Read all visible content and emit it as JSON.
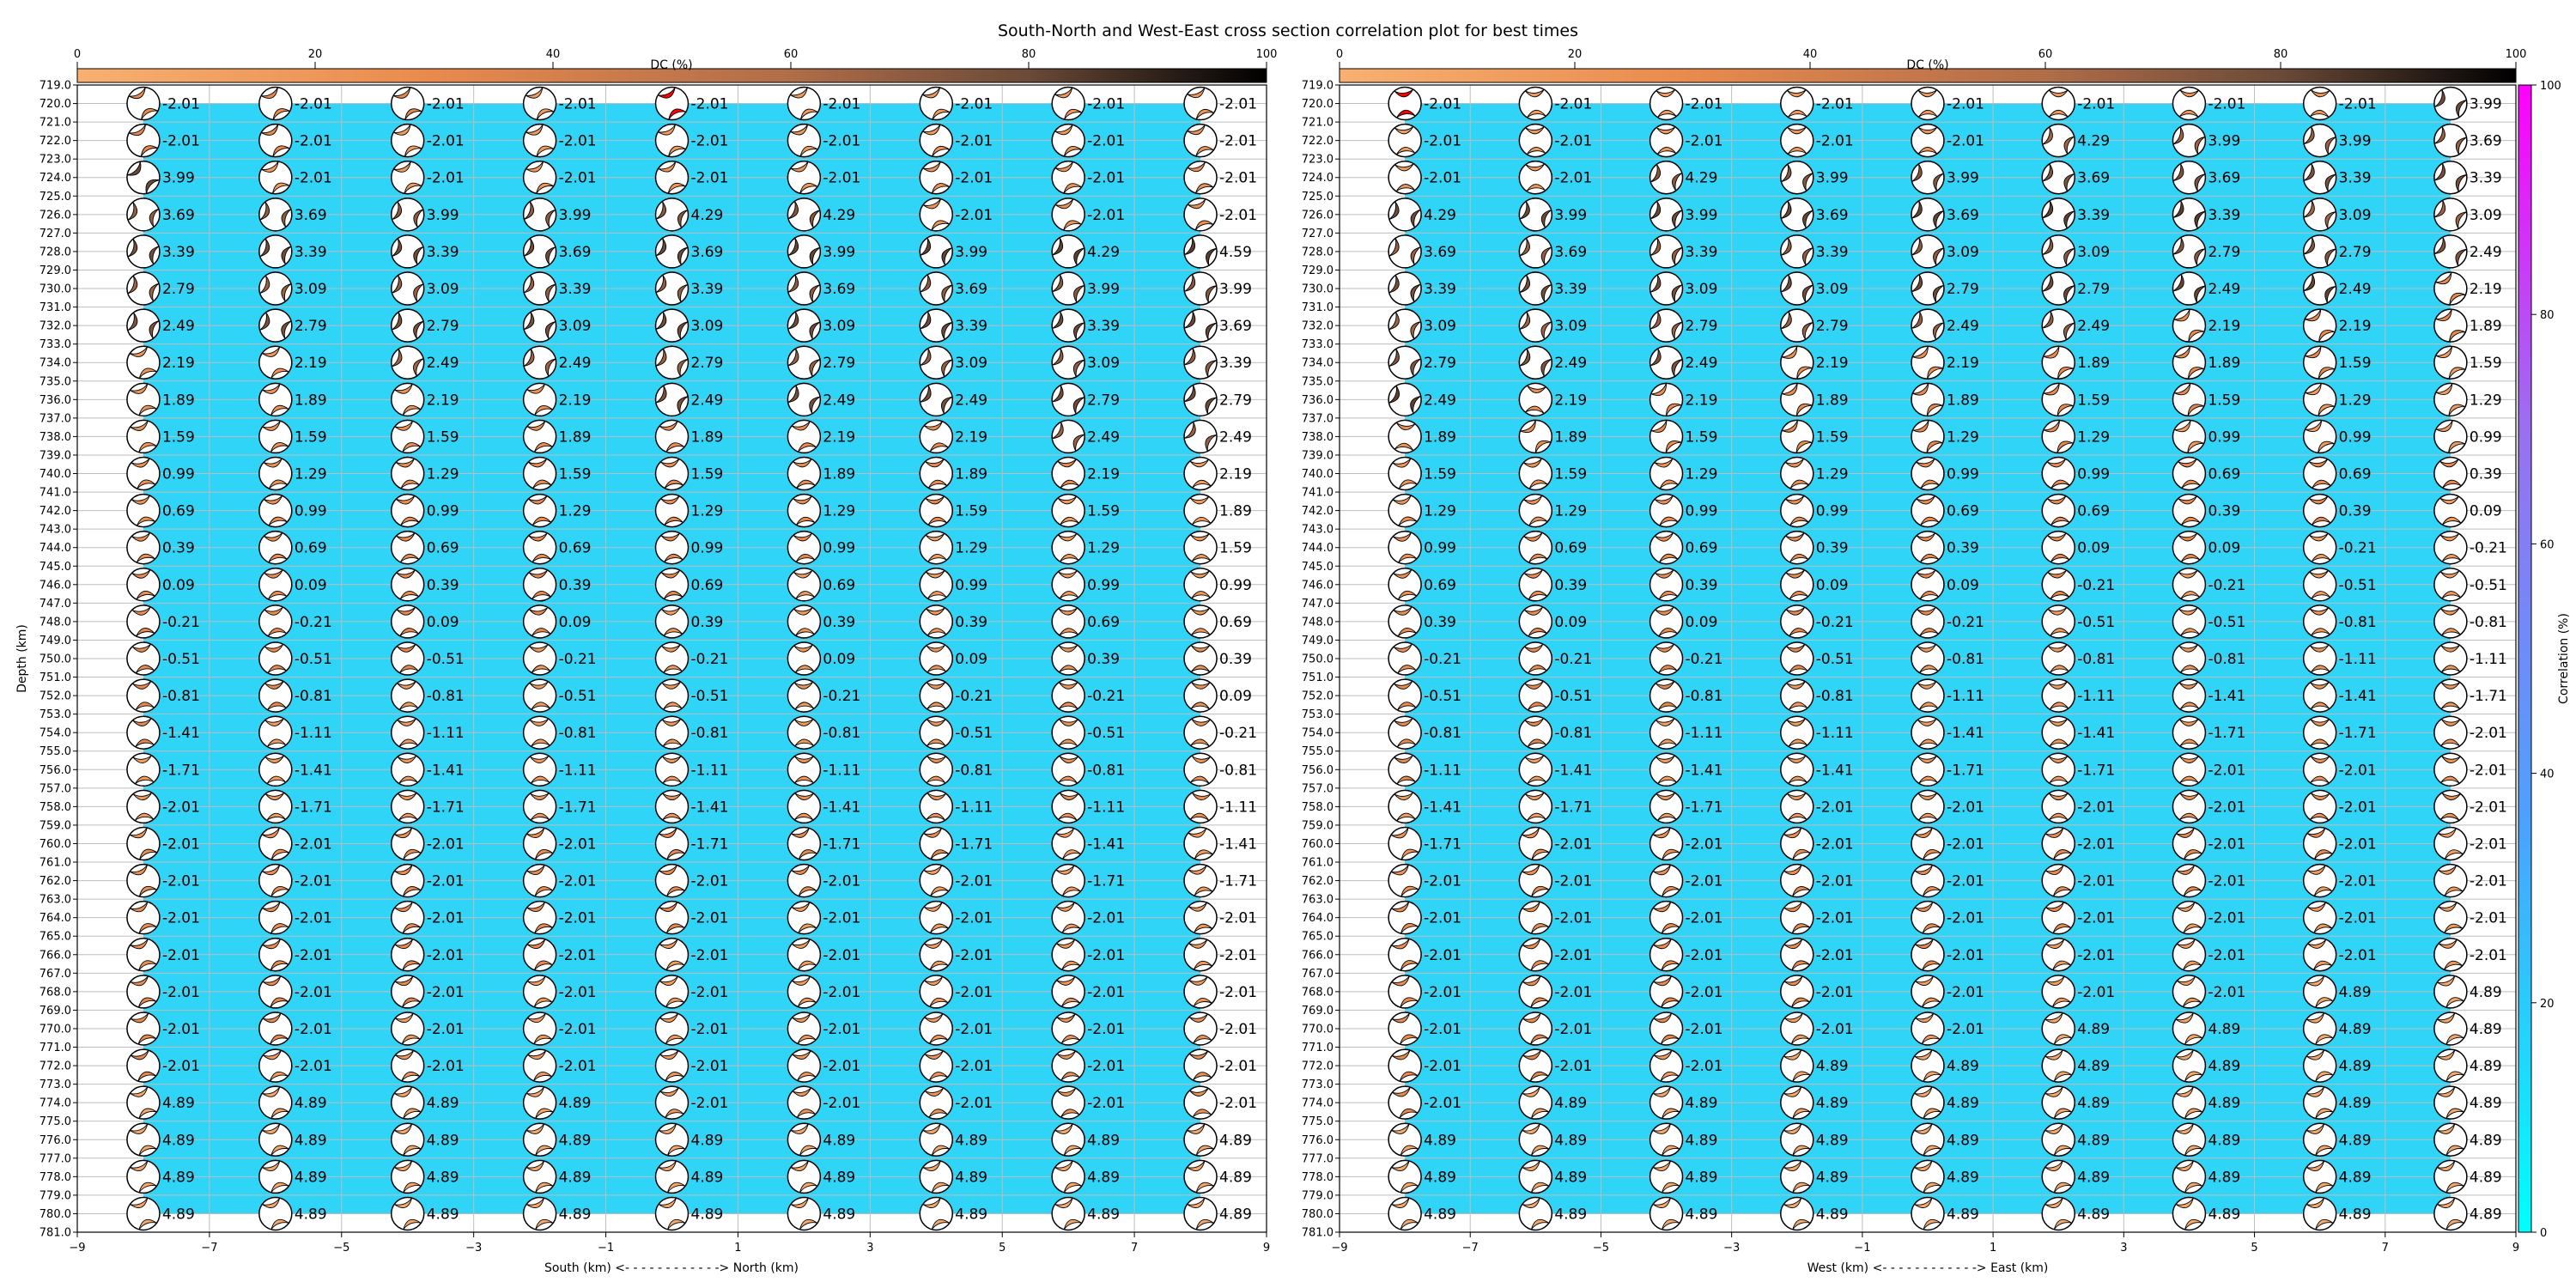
{
  "title": "South-North and West-East cross section correlation plot for best times",
  "colors": {
    "fill": "#2fd4f7",
    "beachball_outline": "#000000",
    "dc_gradient": [
      "#f8b070",
      "#e88a4e",
      "#b06d48",
      "#6a4a38",
      "#000000"
    ],
    "corr_gradient": [
      "#00ffff",
      "#4aa3ff",
      "#9a70f0",
      "#ff00ff"
    ],
    "highlight": "#ff0000",
    "grid": "#bdbdbd"
  },
  "dc_colorbar": {
    "label": "DC (%)",
    "ticks": [
      0,
      20,
      40,
      60,
      80,
      100
    ]
  },
  "corr_colorbar": {
    "label": "Correlation (%)",
    "ticks": [
      0,
      20,
      40,
      60,
      80,
      100
    ]
  },
  "chart_data": [
    {
      "type": "scatter",
      "xlabel": "South (km) <- - - - - - - - - - - -> North (km)",
      "ylabel": "Depth (km)",
      "xlim": [
        -9,
        9
      ],
      "ylim": [
        781,
        719
      ],
      "xticks": [
        -9,
        -7,
        -5,
        -3,
        -1,
        1,
        3,
        5,
        7,
        9
      ],
      "yticks": [
        719.0,
        720.0,
        721.0,
        722.0,
        723.0,
        724.0,
        725.0,
        726.0,
        727.0,
        728.0,
        729.0,
        730.0,
        731.0,
        732.0,
        733.0,
        734.0,
        735.0,
        736.0,
        737.0,
        738.0,
        739.0,
        740.0,
        741.0,
        742.0,
        743.0,
        744.0,
        745.0,
        746.0,
        747.0,
        748.0,
        749.0,
        750.0,
        751.0,
        752.0,
        753.0,
        754.0,
        755.0,
        756.0,
        757.0,
        758.0,
        759.0,
        760.0,
        761.0,
        762.0,
        763.0,
        764.0,
        765.0,
        766.0,
        767.0,
        768.0,
        769.0,
        770.0,
        771.0,
        772.0,
        773.0,
        774.0,
        775.0,
        776.0,
        777.0,
        778.0,
        779.0,
        780.0,
        781.0
      ],
      "x": [
        -8,
        -6,
        -4,
        -2,
        0,
        2,
        4,
        6,
        8
      ],
      "depths": [
        720,
        722,
        724,
        726,
        728,
        730,
        732,
        734,
        736,
        738,
        740,
        742,
        744,
        746,
        748,
        750,
        752,
        754,
        756,
        758,
        760,
        762,
        764,
        766,
        768,
        770,
        772,
        774,
        776,
        778,
        780
      ],
      "values": [
        [
          "-2.01",
          "-2.01",
          "-2.01",
          "-2.01",
          "-2.01",
          "-2.01",
          "-2.01",
          "-2.01",
          "-2.01"
        ],
        [
          "-2.01",
          "-2.01",
          "-2.01",
          "-2.01",
          "-2.01",
          "-2.01",
          "-2.01",
          "-2.01",
          "-2.01"
        ],
        [
          "3.99",
          "-2.01",
          "-2.01",
          "-2.01",
          "-2.01",
          "-2.01",
          "-2.01",
          "-2.01",
          "-2.01"
        ],
        [
          "3.69",
          "3.69",
          "3.99",
          "3.99",
          "4.29",
          "4.29",
          "-2.01",
          "-2.01",
          "-2.01"
        ],
        [
          "3.39",
          "3.39",
          "3.39",
          "3.69",
          "3.69",
          "3.99",
          "3.99",
          "4.29",
          "4.59"
        ],
        [
          "2.79",
          "3.09",
          "3.09",
          "3.39",
          "3.39",
          "3.69",
          "3.69",
          "3.99",
          "3.99"
        ],
        [
          "2.49",
          "2.79",
          "2.79",
          "3.09",
          "3.09",
          "3.09",
          "3.39",
          "3.39",
          "3.69"
        ],
        [
          "2.19",
          "2.19",
          "2.49",
          "2.49",
          "2.79",
          "2.79",
          "3.09",
          "3.09",
          "3.39"
        ],
        [
          "1.89",
          "1.89",
          "2.19",
          "2.19",
          "2.49",
          "2.49",
          "2.49",
          "2.79",
          "2.79"
        ],
        [
          "1.59",
          "1.59",
          "1.59",
          "1.89",
          "1.89",
          "2.19",
          "2.19",
          "2.49",
          "2.49"
        ],
        [
          "0.99",
          "1.29",
          "1.29",
          "1.59",
          "1.59",
          "1.89",
          "1.89",
          "2.19",
          "2.19"
        ],
        [
          "0.69",
          "0.99",
          "0.99",
          "1.29",
          "1.29",
          "1.29",
          "1.59",
          "1.59",
          "1.89"
        ],
        [
          "0.39",
          "0.69",
          "0.69",
          "0.69",
          "0.99",
          "0.99",
          "1.29",
          "1.29",
          "1.59"
        ],
        [
          "0.09",
          "0.09",
          "0.39",
          "0.39",
          "0.69",
          "0.69",
          "0.99",
          "0.99",
          "0.99"
        ],
        [
          "-0.21",
          "-0.21",
          "0.09",
          "0.09",
          "0.39",
          "0.39",
          "0.39",
          "0.69",
          "0.69"
        ],
        [
          "-0.51",
          "-0.51",
          "-0.51",
          "-0.21",
          "-0.21",
          "0.09",
          "0.09",
          "0.39",
          "0.39"
        ],
        [
          "-0.81",
          "-0.81",
          "-0.81",
          "-0.51",
          "-0.51",
          "-0.21",
          "-0.21",
          "-0.21",
          "0.09"
        ],
        [
          "-1.41",
          "-1.11",
          "-1.11",
          "-0.81",
          "-0.81",
          "-0.81",
          "-0.51",
          "-0.51",
          "-0.21"
        ],
        [
          "-1.71",
          "-1.41",
          "-1.41",
          "-1.11",
          "-1.11",
          "-1.11",
          "-0.81",
          "-0.81",
          "-0.81"
        ],
        [
          "-2.01",
          "-1.71",
          "-1.71",
          "-1.71",
          "-1.41",
          "-1.41",
          "-1.11",
          "-1.11",
          "-1.11"
        ],
        [
          "-2.01",
          "-2.01",
          "-2.01",
          "-2.01",
          "-1.71",
          "-1.71",
          "-1.71",
          "-1.41",
          "-1.41"
        ],
        [
          "-2.01",
          "-2.01",
          "-2.01",
          "-2.01",
          "-2.01",
          "-2.01",
          "-2.01",
          "-1.71",
          "-1.71"
        ],
        [
          "-2.01",
          "-2.01",
          "-2.01",
          "-2.01",
          "-2.01",
          "-2.01",
          "-2.01",
          "-2.01",
          "-2.01"
        ],
        [
          "-2.01",
          "-2.01",
          "-2.01",
          "-2.01",
          "-2.01",
          "-2.01",
          "-2.01",
          "-2.01",
          "-2.01"
        ],
        [
          "-2.01",
          "-2.01",
          "-2.01",
          "-2.01",
          "-2.01",
          "-2.01",
          "-2.01",
          "-2.01",
          "-2.01"
        ],
        [
          "-2.01",
          "-2.01",
          "-2.01",
          "-2.01",
          "-2.01",
          "-2.01",
          "-2.01",
          "-2.01",
          "-2.01"
        ],
        [
          "-2.01",
          "-2.01",
          "-2.01",
          "-2.01",
          "-2.01",
          "-2.01",
          "-2.01",
          "-2.01",
          "-2.01"
        ],
        [
          "4.89",
          "4.89",
          "4.89",
          "4.89",
          "-2.01",
          "-2.01",
          "-2.01",
          "-2.01",
          "-2.01"
        ],
        [
          "4.89",
          "4.89",
          "4.89",
          "4.89",
          "4.89",
          "4.89",
          "4.89",
          "4.89",
          "4.89"
        ],
        [
          "4.89",
          "4.89",
          "4.89",
          "4.89",
          "4.89",
          "4.89",
          "4.89",
          "4.89",
          "4.89"
        ],
        [
          "4.89",
          "4.89",
          "4.89",
          "4.89",
          "4.89",
          "4.89",
          "4.89",
          "4.89",
          "4.89"
        ]
      ],
      "highlight": {
        "x": 0,
        "depth": 720
      }
    },
    {
      "type": "scatter",
      "xlabel": "West (km) <- - - - - - - - - - - -> East (km)",
      "ylabel": "",
      "xlim": [
        -9,
        9
      ],
      "ylim": [
        781,
        719
      ],
      "xticks": [
        -9,
        -7,
        -5,
        -3,
        -1,
        1,
        3,
        5,
        7,
        9
      ],
      "yticks": [
        719.0,
        720.0,
        721.0,
        722.0,
        723.0,
        724.0,
        725.0,
        726.0,
        727.0,
        728.0,
        729.0,
        730.0,
        731.0,
        732.0,
        733.0,
        734.0,
        735.0,
        736.0,
        737.0,
        738.0,
        739.0,
        740.0,
        741.0,
        742.0,
        743.0,
        744.0,
        745.0,
        746.0,
        747.0,
        748.0,
        749.0,
        750.0,
        751.0,
        752.0,
        753.0,
        754.0,
        755.0,
        756.0,
        757.0,
        758.0,
        759.0,
        760.0,
        761.0,
        762.0,
        763.0,
        764.0,
        765.0,
        766.0,
        767.0,
        768.0,
        769.0,
        770.0,
        771.0,
        772.0,
        773.0,
        774.0,
        775.0,
        776.0,
        777.0,
        778.0,
        779.0,
        780.0,
        781.0
      ],
      "x": [
        -8,
        -6,
        -4,
        -2,
        0,
        2,
        4,
        6,
        8
      ],
      "depths": [
        720,
        722,
        724,
        726,
        728,
        730,
        732,
        734,
        736,
        738,
        740,
        742,
        744,
        746,
        748,
        750,
        752,
        754,
        756,
        758,
        760,
        762,
        764,
        766,
        768,
        770,
        772,
        774,
        776,
        778,
        780
      ],
      "values": [
        [
          "-2.01",
          "-2.01",
          "-2.01",
          "-2.01",
          "-2.01",
          "-2.01",
          "-2.01",
          "-2.01",
          "3.99"
        ],
        [
          "-2.01",
          "-2.01",
          "-2.01",
          "-2.01",
          "-2.01",
          "4.29",
          "3.99",
          "3.99",
          "3.69"
        ],
        [
          "-2.01",
          "-2.01",
          "4.29",
          "3.99",
          "3.99",
          "3.69",
          "3.69",
          "3.39",
          "3.39"
        ],
        [
          "4.29",
          "3.99",
          "3.99",
          "3.69",
          "3.69",
          "3.39",
          "3.39",
          "3.09",
          "3.09"
        ],
        [
          "3.69",
          "3.69",
          "3.39",
          "3.39",
          "3.09",
          "3.09",
          "2.79",
          "2.79",
          "2.49"
        ],
        [
          "3.39",
          "3.39",
          "3.09",
          "3.09",
          "2.79",
          "2.79",
          "2.49",
          "2.49",
          "2.19"
        ],
        [
          "3.09",
          "3.09",
          "2.79",
          "2.79",
          "2.49",
          "2.49",
          "2.19",
          "2.19",
          "1.89"
        ],
        [
          "2.79",
          "2.49",
          "2.49",
          "2.19",
          "2.19",
          "1.89",
          "1.89",
          "1.59",
          "1.59"
        ],
        [
          "2.49",
          "2.19",
          "2.19",
          "1.89",
          "1.89",
          "1.59",
          "1.59",
          "1.29",
          "1.29"
        ],
        [
          "1.89",
          "1.89",
          "1.59",
          "1.59",
          "1.29",
          "1.29",
          "0.99",
          "0.99",
          "0.99"
        ],
        [
          "1.59",
          "1.59",
          "1.29",
          "1.29",
          "0.99",
          "0.99",
          "0.69",
          "0.69",
          "0.39"
        ],
        [
          "1.29",
          "1.29",
          "0.99",
          "0.99",
          "0.69",
          "0.69",
          "0.39",
          "0.39",
          "0.09"
        ],
        [
          "0.99",
          "0.69",
          "0.69",
          "0.39",
          "0.39",
          "0.09",
          "0.09",
          "-0.21",
          "-0.21"
        ],
        [
          "0.69",
          "0.39",
          "0.39",
          "0.09",
          "0.09",
          "-0.21",
          "-0.21",
          "-0.51",
          "-0.51"
        ],
        [
          "0.39",
          "0.09",
          "0.09",
          "-0.21",
          "-0.21",
          "-0.51",
          "-0.51",
          "-0.81",
          "-0.81"
        ],
        [
          "-0.21",
          "-0.21",
          "-0.21",
          "-0.51",
          "-0.81",
          "-0.81",
          "-0.81",
          "-1.11",
          "-1.11"
        ],
        [
          "-0.51",
          "-0.51",
          "-0.81",
          "-0.81",
          "-1.11",
          "-1.11",
          "-1.41",
          "-1.41",
          "-1.71"
        ],
        [
          "-0.81",
          "-0.81",
          "-1.11",
          "-1.11",
          "-1.41",
          "-1.41",
          "-1.71",
          "-1.71",
          "-2.01"
        ],
        [
          "-1.11",
          "-1.41",
          "-1.41",
          "-1.41",
          "-1.71",
          "-1.71",
          "-2.01",
          "-2.01",
          "-2.01"
        ],
        [
          "-1.41",
          "-1.71",
          "-1.71",
          "-2.01",
          "-2.01",
          "-2.01",
          "-2.01",
          "-2.01",
          "-2.01"
        ],
        [
          "-1.71",
          "-2.01",
          "-2.01",
          "-2.01",
          "-2.01",
          "-2.01",
          "-2.01",
          "-2.01",
          "-2.01"
        ],
        [
          "-2.01",
          "-2.01",
          "-2.01",
          "-2.01",
          "-2.01",
          "-2.01",
          "-2.01",
          "-2.01",
          "-2.01"
        ],
        [
          "-2.01",
          "-2.01",
          "-2.01",
          "-2.01",
          "-2.01",
          "-2.01",
          "-2.01",
          "-2.01",
          "-2.01"
        ],
        [
          "-2.01",
          "-2.01",
          "-2.01",
          "-2.01",
          "-2.01",
          "-2.01",
          "-2.01",
          "-2.01",
          "-2.01"
        ],
        [
          "-2.01",
          "-2.01",
          "-2.01",
          "-2.01",
          "-2.01",
          "-2.01",
          "-2.01",
          "4.89",
          "4.89"
        ],
        [
          "-2.01",
          "-2.01",
          "-2.01",
          "-2.01",
          "-2.01",
          "4.89",
          "4.89",
          "4.89",
          "4.89"
        ],
        [
          "-2.01",
          "-2.01",
          "-2.01",
          "4.89",
          "4.89",
          "4.89",
          "4.89",
          "4.89",
          "4.89"
        ],
        [
          "-2.01",
          "4.89",
          "4.89",
          "4.89",
          "4.89",
          "4.89",
          "4.89",
          "4.89",
          "4.89"
        ],
        [
          "4.89",
          "4.89",
          "4.89",
          "4.89",
          "4.89",
          "4.89",
          "4.89",
          "4.89",
          "4.89"
        ],
        [
          "4.89",
          "4.89",
          "4.89",
          "4.89",
          "4.89",
          "4.89",
          "4.89",
          "4.89",
          "4.89"
        ],
        [
          "4.89",
          "4.89",
          "4.89",
          "4.89",
          "4.89",
          "4.89",
          "4.89",
          "4.89",
          "4.89"
        ]
      ],
      "highlight": {
        "x": -8,
        "depth": 720
      }
    }
  ]
}
